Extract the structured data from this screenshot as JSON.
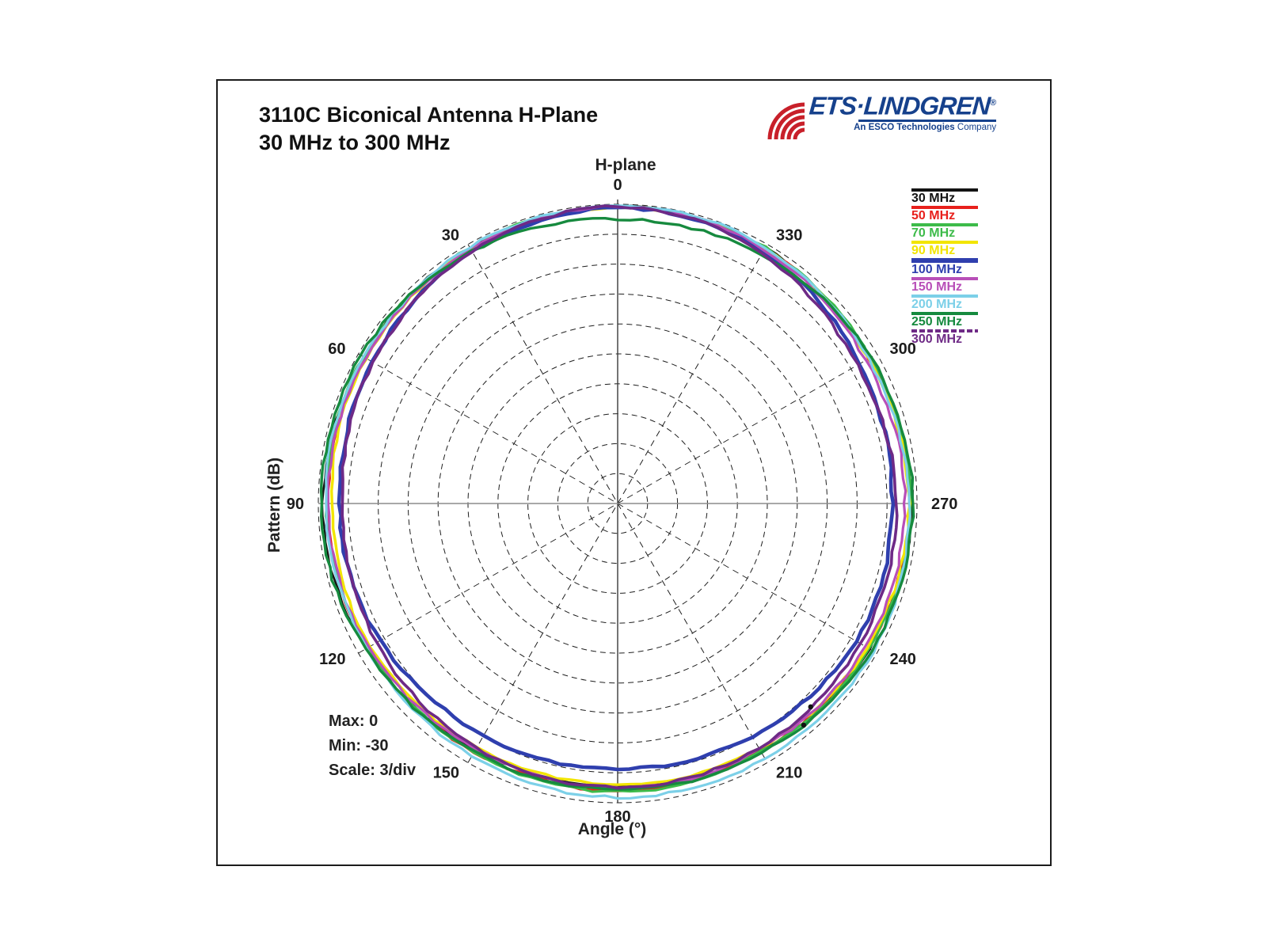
{
  "page": {
    "title_line1": "3110C Biconical Antenna H-Plane",
    "title_line2": "30 MHz to 300 MHz"
  },
  "logo": {
    "brand": "ETS·LINDGREN",
    "reg": "®",
    "tagline_bold": "An ESCO Technologies",
    "tagline_normal": "Company",
    "brand_color": "#16418c",
    "wave_color": "#c8202a"
  },
  "chart_data": {
    "type": "polar-line",
    "title": "H-plane",
    "radial_axis_label": "Pattern (dB)",
    "angular_axis_label": "Angle  (°)",
    "annotations": {
      "max": "Max: 0",
      "min": "Min: -30",
      "scale": "Scale: 3/div"
    },
    "max_db": 0,
    "min_db": -30,
    "db_per_division": 3,
    "rings": 10,
    "angle_tick_labels": [
      "0",
      "30",
      "60",
      "90",
      "120",
      "150",
      "180",
      "210",
      "240",
      "270",
      "300",
      "330"
    ],
    "angle_ticks_deg": [
      0,
      30,
      60,
      90,
      120,
      150,
      180,
      210,
      240,
      270,
      300,
      330
    ],
    "angle_direction": "counterclockwise-from-top",
    "angle_step_deg": 15,
    "legend_position": "right",
    "grid": true,
    "series": [
      {
        "name": "30 MHz",
        "color": "#131313",
        "width": 2.6,
        "dash": false,
        "values_db": [
          -0.2,
          -0.3,
          -0.4,
          -0.5,
          -0.6,
          -0.55,
          -0.5,
          -0.6,
          -0.9,
          -1.2,
          -1.45,
          -1.55,
          -1.6,
          -1.5,
          -1.3,
          -1.1,
          -0.9,
          -0.7,
          -0.5,
          -0.7,
          -0.9,
          -0.7,
          -0.4,
          -0.3
        ]
      },
      {
        "name": "50 MHz",
        "color": "#e8201c",
        "width": 3.1,
        "dash": false,
        "values_db": [
          -0.3,
          -0.35,
          -0.45,
          -0.55,
          -0.7,
          -0.85,
          -1.0,
          -1.0,
          -1.05,
          -1.1,
          -1.25,
          -1.25,
          -1.2,
          -1.3,
          -1.35,
          -1.2,
          -1.0,
          -0.85,
          -0.7,
          -0.8,
          -0.9,
          -0.7,
          -0.5,
          -0.35
        ]
      },
      {
        "name": "70 MHz",
        "color": "#3dbb4a",
        "width": 3.1,
        "dash": false,
        "values_db": [
          -0.25,
          -0.3,
          -0.4,
          -0.5,
          -0.6,
          -0.7,
          -0.8,
          -0.95,
          -1.1,
          -1.15,
          -1.2,
          -1.15,
          -1.1,
          -1.15,
          -1.25,
          -1.05,
          -0.9,
          -0.75,
          -0.6,
          -0.7,
          -0.8,
          -0.6,
          -0.4,
          -0.3
        ]
      },
      {
        "name": "90 MHz",
        "color": "#f2e500",
        "width": 3.4,
        "dash": false,
        "values_db": [
          -0.3,
          -0.4,
          -0.55,
          -0.7,
          -0.9,
          -1.1,
          -1.35,
          -1.35,
          -1.4,
          -1.6,
          -1.8,
          -1.85,
          -1.85,
          -1.8,
          -1.65,
          -1.4,
          -1.15,
          -0.95,
          -0.8,
          -0.9,
          -1.0,
          -0.8,
          -0.55,
          -0.4
        ]
      },
      {
        "name": "100 MHz",
        "color": "#2f3fae",
        "width": 4.6,
        "dash": false,
        "values_db": [
          -0.35,
          -0.55,
          -0.85,
          -1.2,
          -1.6,
          -1.9,
          -2.1,
          -2.2,
          -2.5,
          -2.9,
          -3.15,
          -3.3,
          -3.4,
          -3.3,
          -3.05,
          -2.75,
          -2.35,
          -2.4,
          -2.5,
          -2.3,
          -1.95,
          -1.4,
          -0.8,
          -0.45
        ]
      },
      {
        "name": "150 MHz",
        "color": "#b84fb8",
        "width": 3.2,
        "dash": false,
        "values_db": [
          -0.2,
          -0.3,
          -0.5,
          -0.7,
          -0.85,
          -0.9,
          -0.95,
          -1.05,
          -1.2,
          -1.4,
          -1.55,
          -1.55,
          -1.5,
          -1.5,
          -1.55,
          -1.4,
          -1.3,
          -1.25,
          -1.2,
          -1.25,
          -1.3,
          -1.0,
          -0.6,
          -0.3
        ]
      },
      {
        "name": "200 MHz",
        "color": "#7cd0e8",
        "width": 3.2,
        "dash": false,
        "values_db": [
          -0.15,
          -0.2,
          -0.35,
          -0.5,
          -0.6,
          -0.65,
          -0.7,
          -0.85,
          -1.0,
          -0.9,
          -0.75,
          -0.65,
          -0.55,
          -0.5,
          -0.45,
          -0.4,
          -0.4,
          -0.6,
          -0.8,
          -0.95,
          -1.0,
          -0.7,
          -0.35,
          -0.2
        ]
      },
      {
        "name": "250 MHz",
        "color": "#168a3e",
        "width": 3.4,
        "dash": false,
        "values_db": [
          -1.45,
          -1.25,
          -0.8,
          -0.45,
          -0.3,
          -0.25,
          -0.25,
          -0.45,
          -0.8,
          -1.1,
          -1.25,
          -1.3,
          -1.3,
          -1.25,
          -1.15,
          -0.9,
          -0.6,
          -0.5,
          -0.4,
          -0.5,
          -0.7,
          -0.95,
          -1.2,
          -1.4
        ]
      },
      {
        "name": "300 MHz",
        "color": "#6e2a86",
        "width": 3.6,
        "dash": true,
        "values_db": [
          -0.25,
          -0.45,
          -0.8,
          -1.3,
          -1.7,
          -2.05,
          -2.4,
          -2.3,
          -2.1,
          -1.9,
          -1.7,
          -1.6,
          -1.55,
          -1.6,
          -1.7,
          -1.8,
          -1.9,
          -2.0,
          -2.1,
          -2.2,
          -2.25,
          -1.8,
          -1.0,
          -0.5
        ]
      }
    ],
    "artifact_dots": [
      {
        "angle_deg": 223.5,
        "db": -1.9
      },
      {
        "angle_deg": 220.0,
        "db": -1.0
      }
    ]
  }
}
